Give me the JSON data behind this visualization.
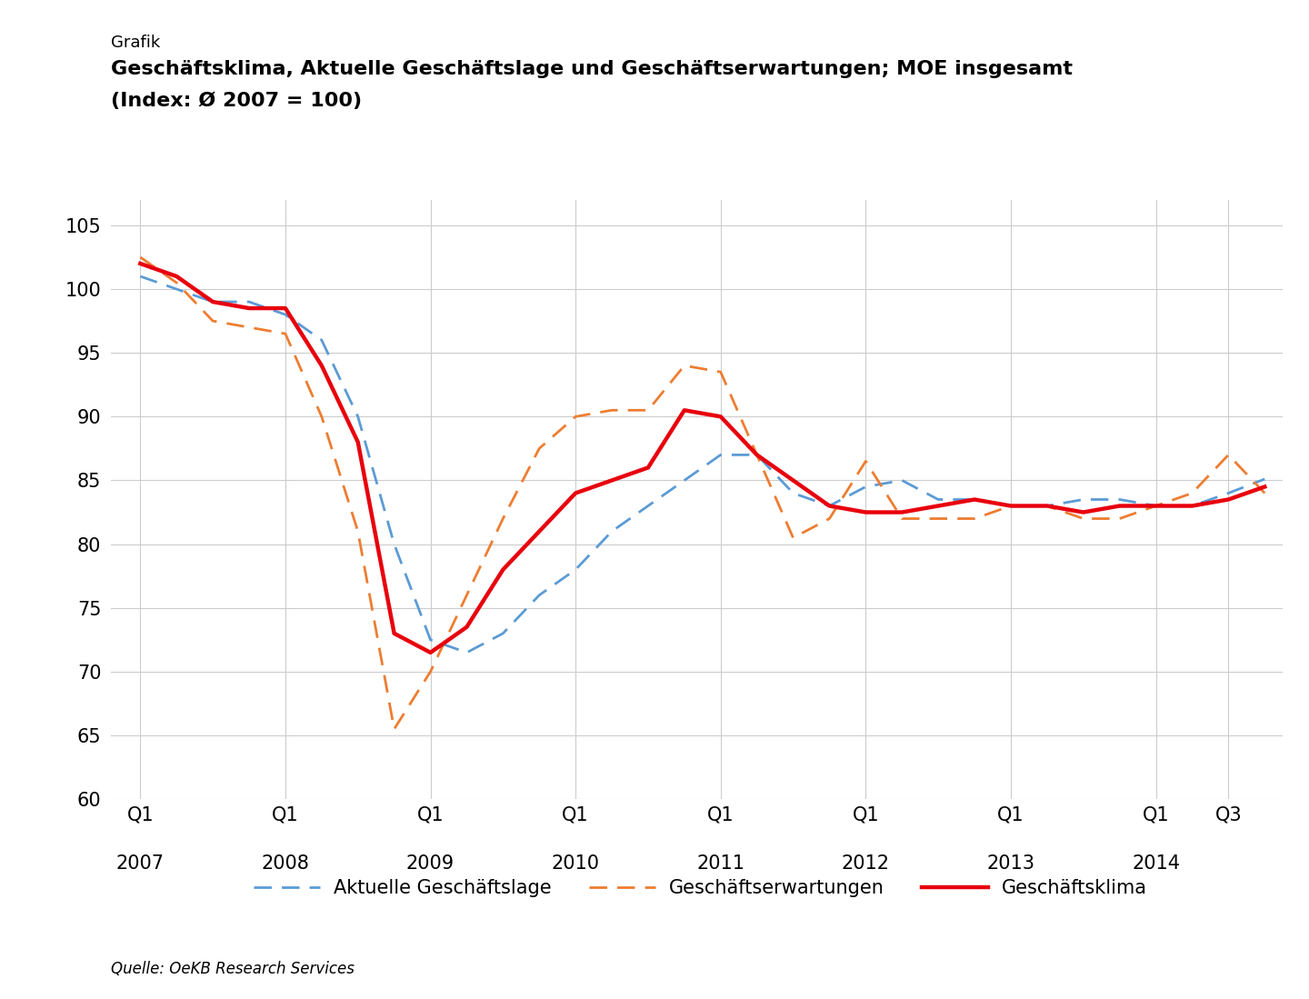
{
  "suptitle": "Grafik",
  "title_line1": "Geschäftsklima, Aktuelle Geschäftslage und Geschäftserwartungen; MOE insgesamt",
  "title_line2": "(Index: Ø 2007 = 100)",
  "source": "Quelle: OeKB Research Services",
  "ylim": [
    60,
    107
  ],
  "yticks": [
    60,
    65,
    70,
    75,
    80,
    85,
    90,
    95,
    100,
    105
  ],
  "background_color": "#ffffff",
  "grid_color": "#cccccc",
  "geschaeftsklima_color": "#e8000d",
  "geschaeftslage_color": "#5b9bd5",
  "geschaeftserwartungen_color": "#ed7d31",
  "geschaeftsklima_label": "Geschäftsklima",
  "geschaeftslage_label": "Aktuelle Geschäftslage",
  "geschaeftserwartungen_label": "Geschäftserwartungen",
  "xtick_positions": [
    0,
    4,
    8,
    12,
    16,
    20,
    24,
    28,
    30
  ],
  "x_q_labels": [
    "Q1",
    "Q1",
    "Q1",
    "Q1",
    "Q1",
    "Q1",
    "Q1",
    "Q1",
    "Q3"
  ],
  "x_year_labels": [
    "2007",
    "2008",
    "2009",
    "2010",
    "2011",
    "2012",
    "2013",
    "2014",
    ""
  ],
  "geschaeftsklima": [
    102.0,
    101.0,
    99.0,
    98.5,
    98.5,
    94.0,
    88.0,
    73.0,
    71.5,
    73.5,
    78.0,
    81.0,
    84.0,
    85.0,
    86.0,
    90.5,
    90.0,
    87.0,
    85.0,
    83.0,
    82.5,
    82.5,
    83.0,
    83.5,
    83.0,
    83.0,
    82.5,
    83.0,
    83.0,
    83.0,
    83.5,
    84.5
  ],
  "geschaeftslage": [
    101.0,
    100.0,
    99.0,
    99.0,
    98.0,
    96.0,
    90.0,
    80.0,
    72.5,
    71.5,
    73.0,
    76.0,
    78.0,
    81.0,
    83.0,
    85.0,
    87.0,
    87.0,
    84.0,
    83.0,
    84.5,
    85.0,
    83.5,
    83.5,
    83.0,
    83.0,
    83.5,
    83.5,
    83.0,
    83.0,
    84.0,
    85.1
  ],
  "geschaeftserwartungen": [
    102.5,
    100.5,
    97.5,
    97.0,
    96.5,
    90.0,
    81.0,
    65.5,
    70.0,
    76.0,
    82.0,
    87.5,
    90.0,
    90.5,
    90.5,
    94.0,
    93.5,
    87.0,
    80.5,
    82.0,
    86.5,
    82.0,
    82.0,
    82.0,
    83.0,
    83.0,
    82.0,
    82.0,
    83.0,
    84.0,
    87.0,
    84.0
  ]
}
